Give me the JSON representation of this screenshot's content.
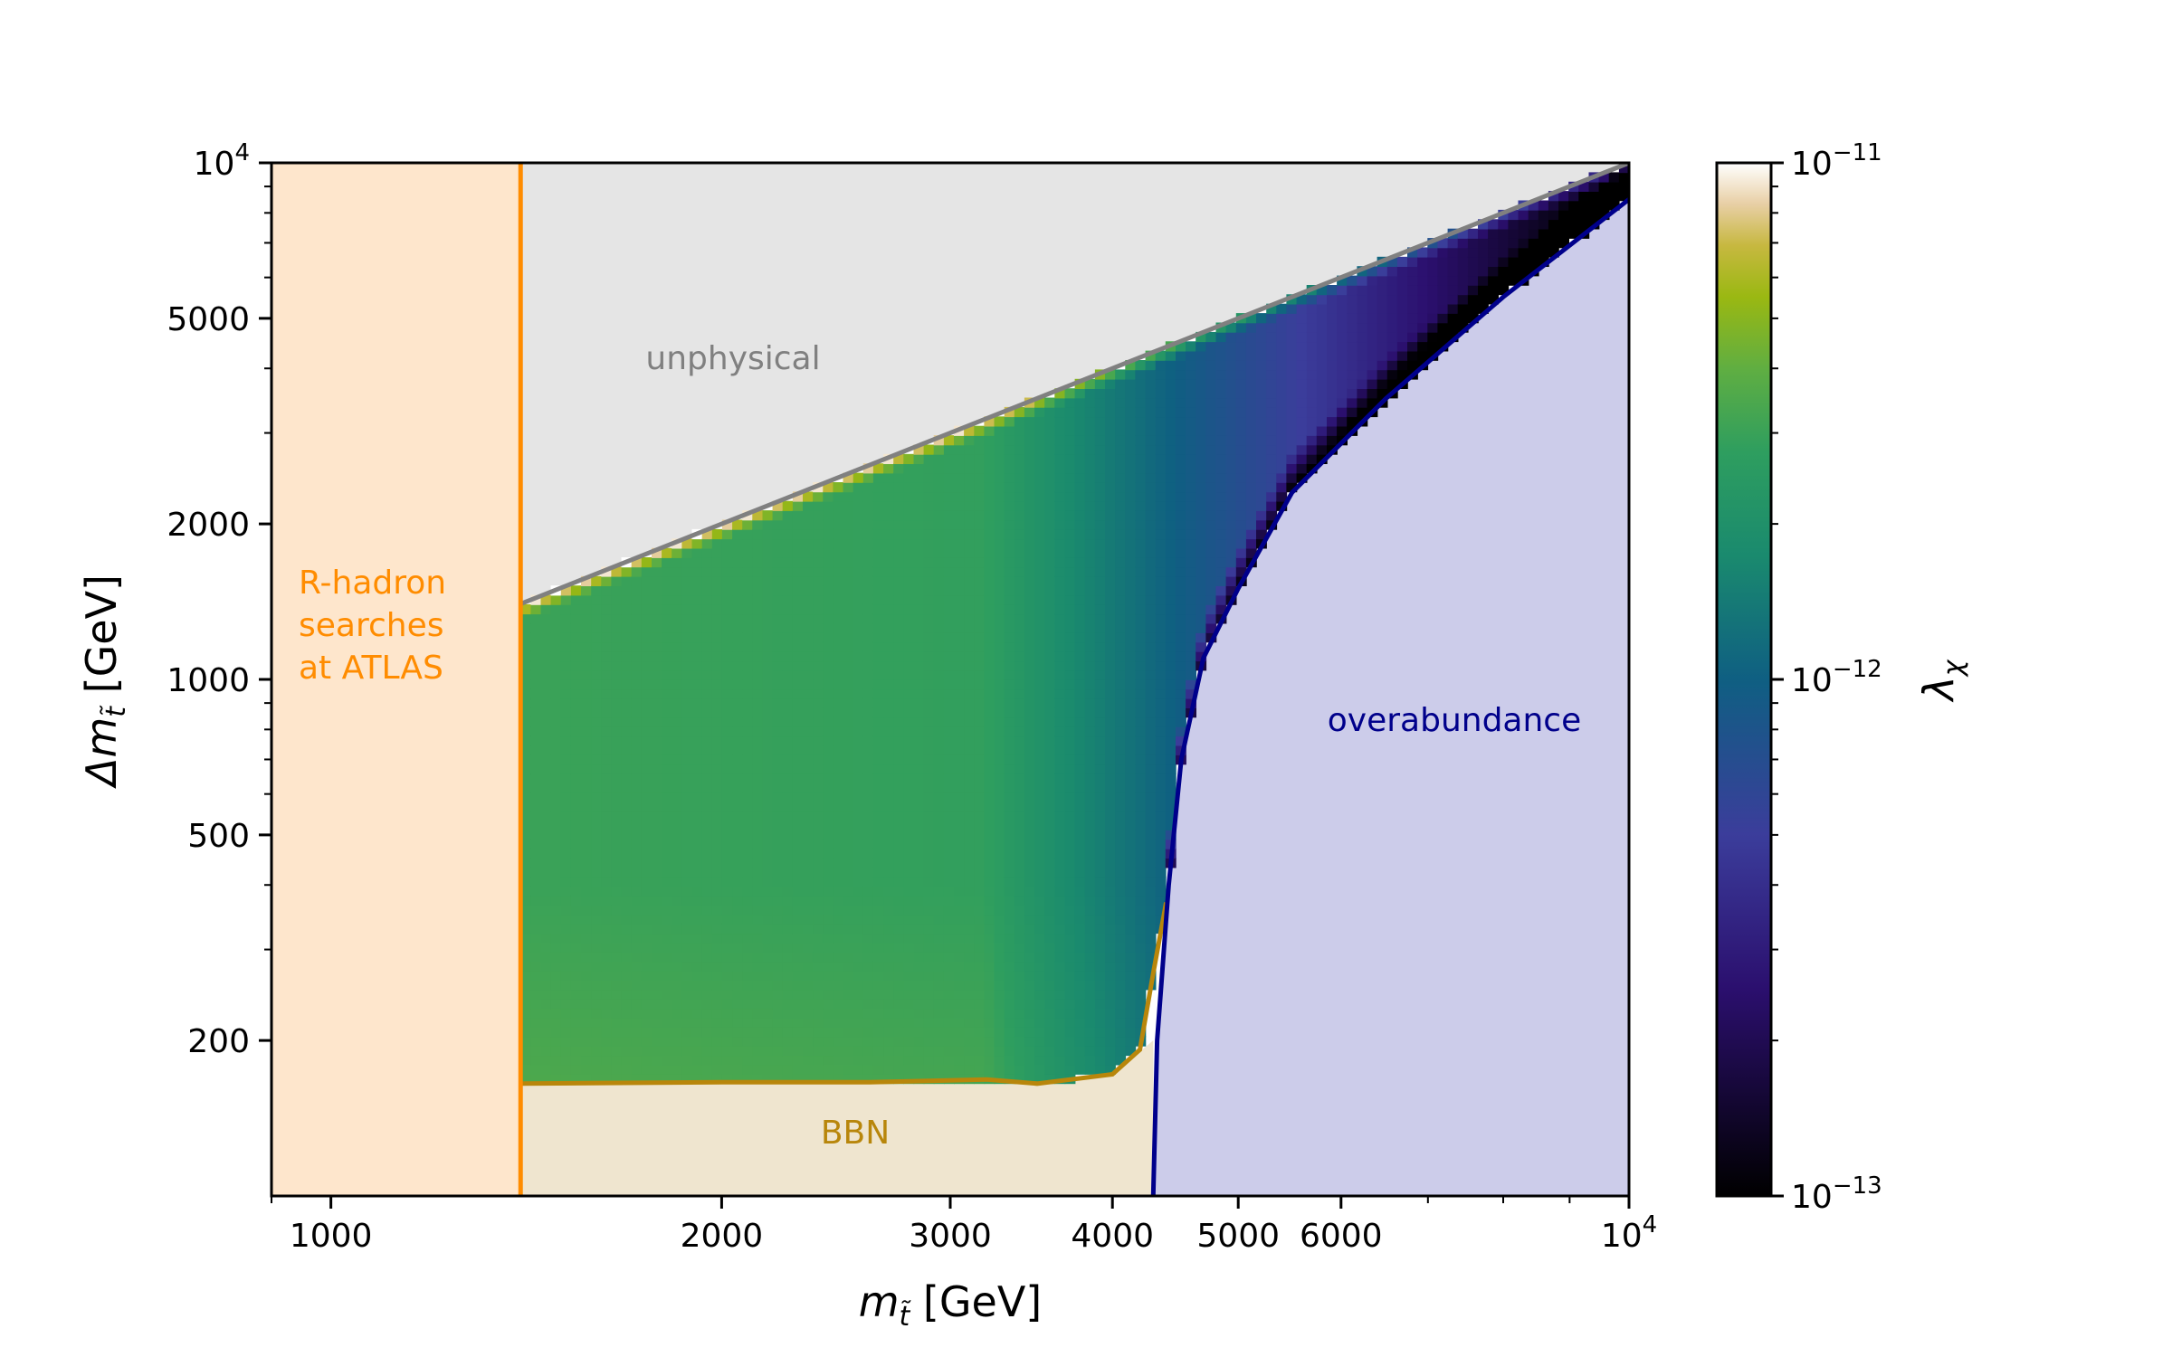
{
  "chart_data": {
    "type": "heatmap",
    "title": "",
    "x_axis": {
      "label": "m_t̃ [GeV]",
      "label_main": "m",
      "label_sub": "t̃",
      "label_unit": " [GeV]",
      "scale": "log",
      "range": [
        900,
        10000
      ],
      "ticks": [
        {
          "value": 1000,
          "label": "1000"
        },
        {
          "value": 2000,
          "label": "2000"
        },
        {
          "value": 3000,
          "label": "3000"
        },
        {
          "value": 4000,
          "label": "4000"
        },
        {
          "value": 5000,
          "label": "5000"
        },
        {
          "value": 6000,
          "label": "6000"
        },
        {
          "value": 10000,
          "label": "10",
          "exp": "4"
        }
      ]
    },
    "y_axis": {
      "label": "Δm_t̃ [GeV]",
      "label_main": "Δm",
      "label_sub": "t̃",
      "label_unit": " [GeV]",
      "scale": "log",
      "range": [
        100,
        10000
      ],
      "ticks": [
        {
          "value": 200,
          "label": "200"
        },
        {
          "value": 500,
          "label": "500"
        },
        {
          "value": 1000,
          "label": "1000"
        },
        {
          "value": 2000,
          "label": "2000"
        },
        {
          "value": 5000,
          "label": "5000"
        },
        {
          "value": 10000,
          "label": "10",
          "exp": "4"
        }
      ]
    },
    "colorbar": {
      "label": "λχ",
      "label_main": "λ",
      "label_sub": "χ",
      "scale": "log",
      "range": [
        1e-13,
        1e-11
      ],
      "ticks": [
        {
          "value": 1e-11,
          "label": "10",
          "exp": "−11"
        },
        {
          "value": 1e-12,
          "label": "10",
          "exp": "−12"
        },
        {
          "value": 1e-13,
          "label": "10",
          "exp": "−13"
        }
      ]
    },
    "regions": {
      "rhadron": {
        "label_lines": [
          "R-hadron",
          "searches",
          "at ATLAS"
        ],
        "x_max": 1400,
        "color": "#ff8c00",
        "fill": "#fee6cc"
      },
      "unphysical": {
        "label": "unphysical",
        "boundary": "Δm = m",
        "color": "#808080",
        "fill": "#e5e5e5"
      },
      "bbn": {
        "label": "BBN",
        "color": "#b8860b",
        "fill": "#efe5cf",
        "boundary": [
          [
            1400,
            165
          ],
          [
            2000,
            166
          ],
          [
            2600,
            166
          ],
          [
            3200,
            168
          ],
          [
            3500,
            165
          ],
          [
            4000,
            172
          ],
          [
            4200,
            192
          ],
          [
            4300,
            270
          ],
          [
            4400,
            370
          ]
        ]
      },
      "overabundance": {
        "label": "overabundance",
        "color": "#00008b",
        "fill": "#ccccea",
        "boundary": [
          [
            4300,
            100
          ],
          [
            4330,
            200
          ],
          [
            4420,
            400
          ],
          [
            4520,
            700
          ],
          [
            4700,
            1100
          ],
          [
            5000,
            1500
          ],
          [
            5500,
            2300
          ],
          [
            6500,
            3500
          ],
          [
            8000,
            5500
          ],
          [
            10000,
            8500
          ]
        ]
      }
    },
    "colormap": [
      [
        0.0,
        "#000000"
      ],
      [
        0.2,
        "#2b0f6e"
      ],
      [
        0.35,
        "#3b3d9b"
      ],
      [
        0.5,
        "#0f5f82"
      ],
      [
        0.62,
        "#1a8a6e"
      ],
      [
        0.72,
        "#2e9e5f"
      ],
      [
        0.8,
        "#5fae42"
      ],
      [
        0.87,
        "#9ab812"
      ],
      [
        0.92,
        "#c7b840"
      ],
      [
        0.96,
        "#e8cfa5"
      ],
      [
        1.0,
        "#ffffff"
      ]
    ]
  }
}
